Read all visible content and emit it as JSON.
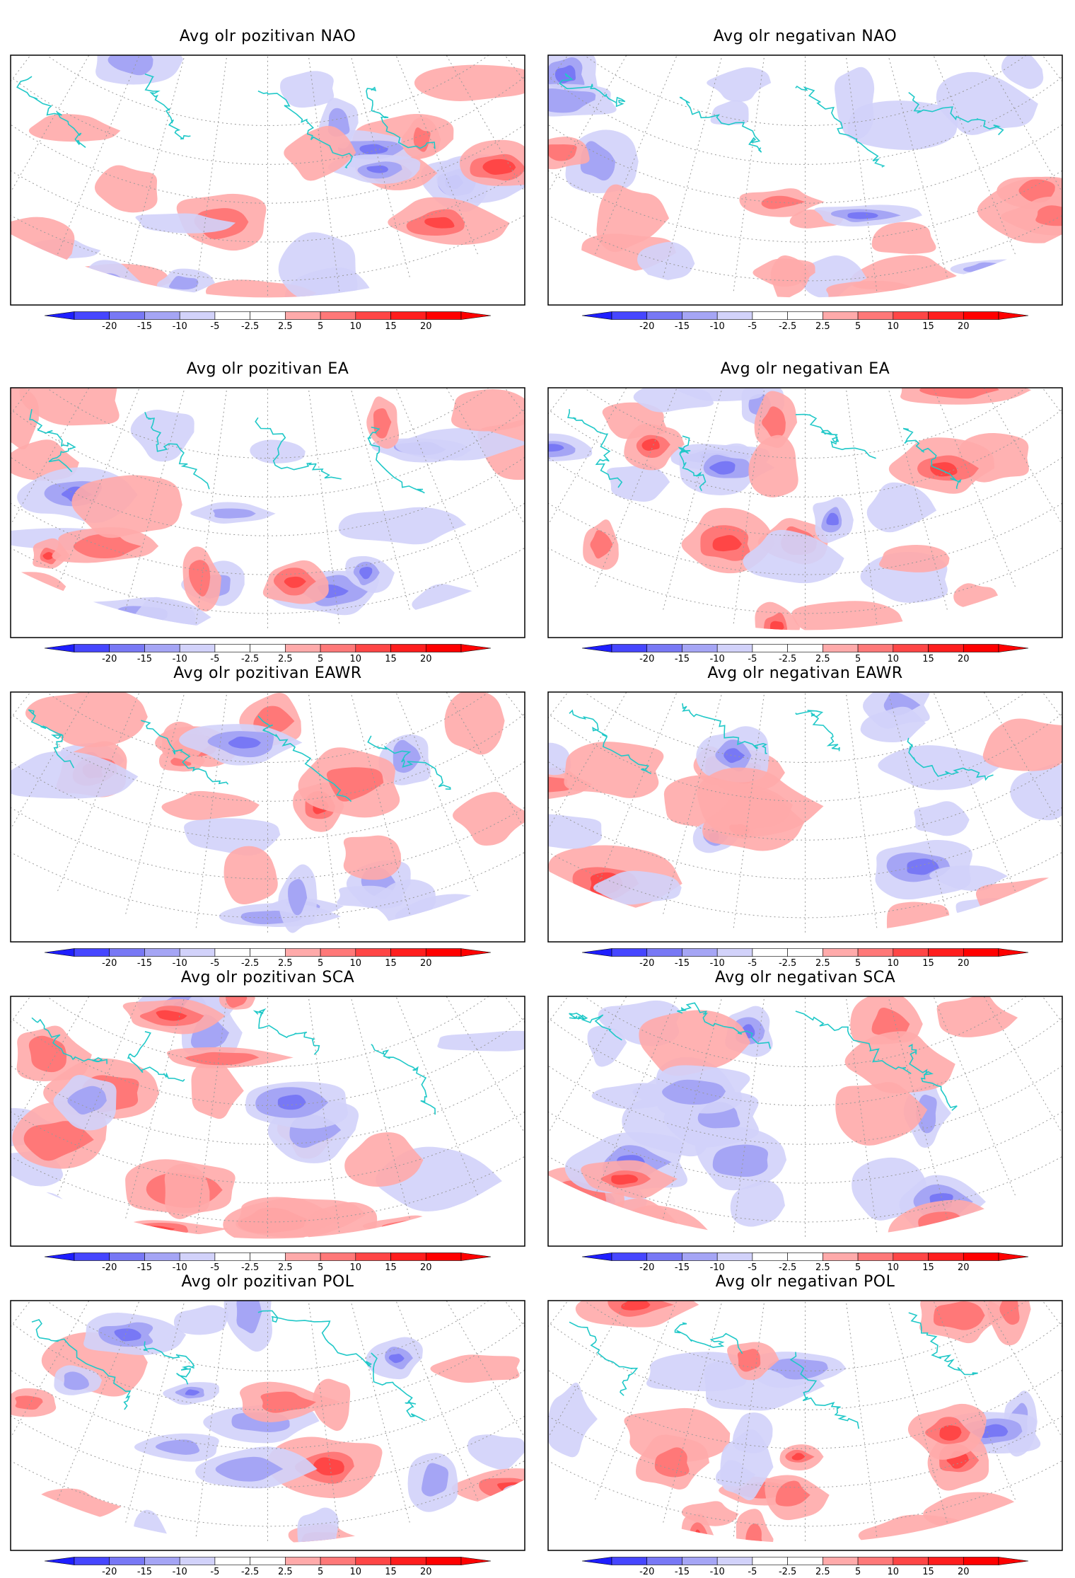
{
  "figure": {
    "colorbar": {
      "ticks": [
        "-20",
        "-15",
        "-10",
        "-5",
        "-2.5",
        "2.5",
        "5",
        "10",
        "15",
        "20"
      ],
      "colors": [
        "#1e1eff",
        "#4646ff",
        "#7878f5",
        "#a5a5f5",
        "#d2d2fa",
        "#ffffff",
        "#ffd2d2",
        "#ffaaaa",
        "#ff7878",
        "#ff4646",
        "#ff1e1e",
        "#ff0000"
      ]
    },
    "coastline_color": "#20c8c8",
    "grid_color": "#999999",
    "panels": [
      {
        "title": "Avg olr pozitivan NAO"
      },
      {
        "title": "Avg olr negativan NAO"
      },
      {
        "title": "Avg olr pozitivan EA"
      },
      {
        "title": "Avg olr negativan EA"
      },
      {
        "title": "Avg olr pozitivan EAWR"
      },
      {
        "title": "Avg olr negativan EAWR"
      },
      {
        "title": "Avg olr pozitivan SCA"
      },
      {
        "title": "Avg olr negativan SCA"
      },
      {
        "title": "Avg olr pozitivan POL"
      },
      {
        "title": "Avg olr negativan POL"
      }
    ]
  }
}
